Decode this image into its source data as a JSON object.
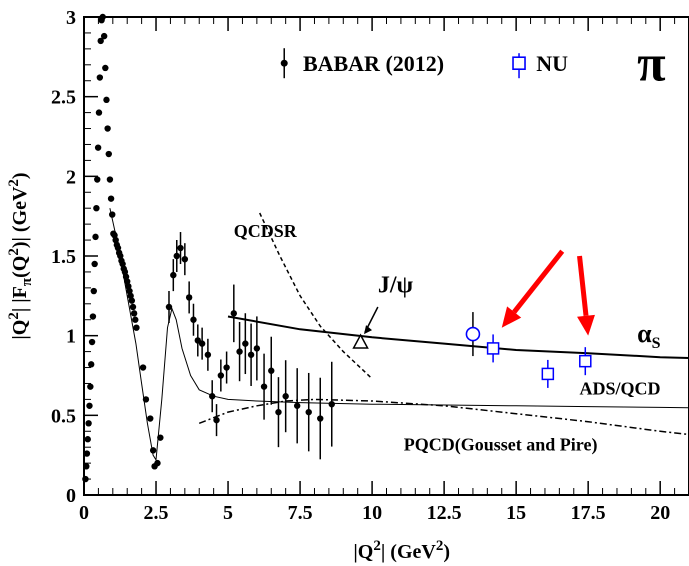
{
  "chart_data": {
    "type": "scatter",
    "xlabel_main": "|Q",
    "xlabel_sup": "2",
    "xlabel_rest": "|  (GeV",
    "xlabel_sup2": "2",
    "xlabel_end": ")",
    "ylabel_main": "|Q",
    "ylabel_sup": "2",
    "ylabel_mid": "| |F",
    "ylabel_sub": "π",
    "ylabel_mid2": "(Q",
    "ylabel_sup2": "2",
    "ylabel_rest": ")|  (GeV",
    "ylabel_sup3": "2",
    "ylabel_end": ")",
    "xlim": [
      0,
      21
    ],
    "ylim": [
      0,
      3
    ],
    "xticks": [
      0,
      2.5,
      5,
      7.5,
      10,
      12.5,
      15,
      17.5,
      20
    ],
    "xtick_labels": [
      "0",
      "2.5",
      "5",
      "7.5",
      "10",
      "12.5",
      "15",
      "17.5",
      "20"
    ],
    "yticks": [
      0,
      0.5,
      1,
      1.5,
      2,
      2.5,
      3
    ],
    "ytick_labels": [
      "0",
      "0.5",
      "1",
      "1.5",
      "2",
      "2.5",
      "3"
    ],
    "legend": {
      "placement": "top-right",
      "entries": [
        "BABAR (2012)",
        "NU"
      ]
    },
    "pi_label": "π",
    "annotations": {
      "qcdsr": "QCDSR",
      "jpsi": "J/ψ",
      "alpha_main": "α",
      "alpha_sub": "S",
      "adsqcd": "ADS/QCD",
      "pqcd": "PQCD(Gousset and Pire)"
    },
    "series": [
      {
        "name": "BABAR (2012)",
        "marker": "filled-circle",
        "points": [
          [
            0.05,
            0.1
          ],
          [
            0.08,
            0.18
          ],
          [
            0.1,
            0.26
          ],
          [
            0.13,
            0.35
          ],
          [
            0.16,
            0.45
          ],
          [
            0.19,
            0.56
          ],
          [
            0.22,
            0.68
          ],
          [
            0.25,
            0.82
          ],
          [
            0.28,
            0.96
          ],
          [
            0.31,
            1.12
          ],
          [
            0.34,
            1.28
          ],
          [
            0.37,
            1.45
          ],
          [
            0.4,
            1.62
          ],
          [
            0.43,
            1.8
          ],
          [
            0.46,
            1.98
          ],
          [
            0.49,
            2.18
          ],
          [
            0.52,
            2.4
          ],
          [
            0.55,
            2.62
          ],
          [
            0.58,
            2.85
          ],
          [
            0.61,
            2.98
          ],
          [
            0.65,
            3.0
          ],
          [
            0.7,
            2.88
          ],
          [
            0.74,
            2.68
          ],
          [
            0.78,
            2.48
          ],
          [
            0.82,
            2.3
          ],
          [
            0.86,
            2.14
          ],
          [
            0.9,
            1.98
          ],
          [
            0.94,
            1.86
          ],
          [
            0.98,
            1.76
          ],
          [
            1.02,
            1.64
          ],
          [
            1.06,
            1.63
          ],
          [
            1.1,
            1.6
          ],
          [
            1.14,
            1.57
          ],
          [
            1.18,
            1.55
          ],
          [
            1.22,
            1.52
          ],
          [
            1.26,
            1.5
          ],
          [
            1.3,
            1.47
          ],
          [
            1.34,
            1.45
          ],
          [
            1.38,
            1.42
          ],
          [
            1.42,
            1.4
          ],
          [
            1.46,
            1.37
          ],
          [
            1.5,
            1.34
          ],
          [
            1.54,
            1.31
          ],
          [
            1.58,
            1.28
          ],
          [
            1.62,
            1.25
          ],
          [
            1.66,
            1.22
          ],
          [
            1.7,
            1.18
          ],
          [
            1.74,
            1.14
          ],
          [
            1.78,
            1.1
          ],
          [
            1.82,
            1.05
          ],
          [
            2.05,
            0.8
          ],
          [
            2.15,
            0.6
          ],
          [
            2.3,
            0.48
          ],
          [
            2.4,
            0.28
          ],
          [
            2.45,
            0.18
          ],
          [
            2.55,
            0.2
          ],
          [
            2.65,
            0.36
          ],
          [
            2.95,
            1.18
          ],
          [
            3.1,
            1.38
          ],
          [
            3.22,
            1.5
          ],
          [
            3.35,
            1.55
          ],
          [
            3.5,
            1.48
          ],
          [
            3.65,
            1.24
          ],
          [
            3.8,
            1.1
          ],
          [
            3.95,
            0.97
          ],
          [
            4.1,
            0.95
          ],
          [
            4.3,
            0.88
          ],
          [
            4.45,
            0.62
          ],
          [
            4.6,
            0.47
          ],
          [
            4.75,
            0.75
          ],
          [
            4.95,
            0.8
          ],
          [
            5.2,
            1.14
          ],
          [
            5.4,
            0.9
          ],
          [
            5.6,
            0.95
          ],
          [
            5.8,
            0.88
          ],
          [
            6.0,
            0.92
          ],
          [
            6.25,
            0.68
          ],
          [
            6.5,
            0.78
          ],
          [
            6.75,
            0.52
          ],
          [
            7.0,
            0.62
          ],
          [
            7.4,
            0.56
          ],
          [
            7.8,
            0.52
          ],
          [
            8.2,
            0.48
          ],
          [
            8.6,
            0.57
          ]
        ]
      },
      {
        "name": "NU",
        "marker": "open-square",
        "points": [
          [
            14.2,
            0.92
          ],
          [
            16.1,
            0.76
          ],
          [
            17.4,
            0.84
          ]
        ]
      },
      {
        "name": "open-circle",
        "marker": "open-circle",
        "points": [
          [
            13.5,
            1.01
          ]
        ]
      },
      {
        "name": "J/ψ",
        "marker": "open-triangle",
        "points": [
          [
            9.6,
            0.96
          ]
        ]
      }
    ],
    "curves": {
      "alpha_s": {
        "x": [
          5.0,
          7.5,
          10,
          12.5,
          15,
          17.5,
          20,
          21
        ],
        "y": [
          1.12,
          1.04,
          0.99,
          0.95,
          0.91,
          0.89,
          0.865,
          0.86
        ]
      },
      "ads_qcd_low": {
        "x": [
          0.9,
          1.2,
          1.5,
          1.8,
          2.0,
          2.2,
          2.4,
          2.5,
          2.7,
          2.9,
          3.05,
          3.2,
          3.4,
          3.7,
          4.0,
          4.5,
          5.0,
          6.0,
          7.5,
          10,
          12.5,
          15,
          17.5,
          20,
          21
        ],
        "y": [
          1.8,
          1.55,
          1.25,
          0.95,
          0.7,
          0.45,
          0.25,
          0.22,
          0.6,
          1.05,
          1.17,
          1.1,
          0.92,
          0.75,
          0.66,
          0.62,
          0.6,
          0.59,
          0.58,
          0.57,
          0.565,
          0.56,
          0.555,
          0.55,
          0.548
        ]
      },
      "qcdsr": {
        "x": [
          6.1,
          6.8,
          7.5,
          8.2,
          9.0,
          10.0
        ],
        "y": [
          1.77,
          1.5,
          1.25,
          1.06,
          0.9,
          0.73
        ]
      },
      "pqcd": {
        "x": [
          4.0,
          5.0,
          6.0,
          7.0,
          8.0,
          10,
          12.5,
          15,
          17.5,
          20,
          21
        ],
        "y": [
          0.45,
          0.52,
          0.56,
          0.59,
          0.6,
          0.59,
          0.56,
          0.51,
          0.46,
          0.4,
          0.38
        ]
      }
    },
    "arrows": [
      {
        "from": [
          16.6,
          1.53
        ],
        "to": [
          14.5,
          1.05
        ],
        "color": "#ff0000"
      },
      {
        "from": [
          17.2,
          1.5
        ],
        "to": [
          17.5,
          1.0
        ],
        "color": "#ff0000"
      }
    ],
    "colors": {
      "babar": "#000000",
      "nu": "#0000ff",
      "arrow": "#ff0000"
    }
  }
}
